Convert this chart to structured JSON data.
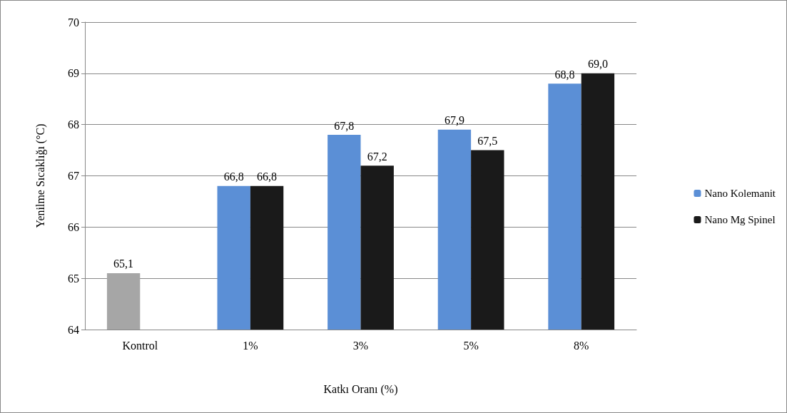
{
  "chart_data": {
    "type": "bar",
    "xlabel": "Katkı Oranı (%)",
    "ylabel": "Yenilme Sıcaklığı (°C)",
    "categories": [
      "Kontrol",
      "1%",
      "3%",
      "5%",
      "8%"
    ],
    "series": [
      {
        "name": "Nano Kolemanit",
        "color": "#5b8fd6",
        "colors": [
          "#a6a6a6",
          "#5b8fd6",
          "#5b8fd6",
          "#5b8fd6",
          "#5b8fd6"
        ],
        "values": [
          65.1,
          66.8,
          67.8,
          67.9,
          68.8
        ],
        "value_labels": [
          "65,1",
          "66,8",
          "67,8",
          "67,9",
          "68,8"
        ]
      },
      {
        "name": "Nano Mg Spinel",
        "color": "#1a1a1a",
        "values": [
          64,
          66.8,
          67.2,
          67.5,
          69.0
        ],
        "value_labels": [
          null,
          "66,8",
          "67,2",
          "67,5",
          "69,0"
        ]
      }
    ],
    "ylim": [
      64,
      70
    ],
    "yticks": [
      64,
      65,
      66,
      67,
      68,
      69,
      70
    ],
    "grid": "y",
    "legend": "right"
  }
}
